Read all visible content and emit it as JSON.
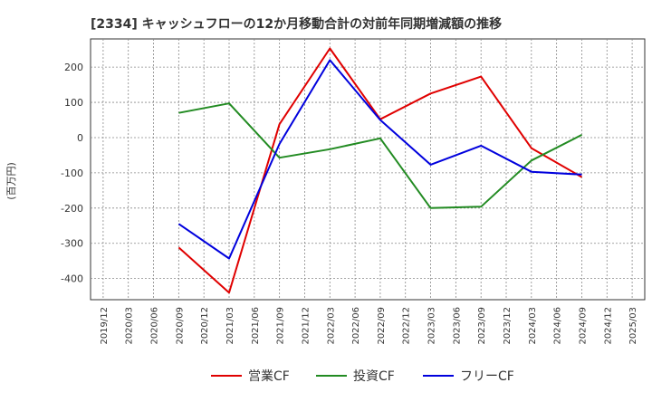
{
  "chart_data": {
    "type": "line",
    "title": "[2334]  キャッシュフローの12か月移動合計の対前年同期増減額の推移",
    "ylabel": "(百万円)",
    "xlabel": "",
    "ylim": [
      -460,
      280
    ],
    "yticks": [
      200,
      100,
      0,
      -100,
      -200,
      -300,
      -400
    ],
    "categories": [
      "2019/12",
      "2020/03",
      "2020/06",
      "2020/09",
      "2020/12",
      "2021/03",
      "2021/06",
      "2021/09",
      "2021/12",
      "2022/03",
      "2022/06",
      "2022/09",
      "2022/12",
      "2023/03",
      "2023/06",
      "2023/09",
      "2023/12",
      "2024/03",
      "2024/06",
      "2024/09",
      "2024/12",
      "2025/03"
    ],
    "grid": true,
    "legend_position": "bottom",
    "series": [
      {
        "name": "営業CF",
        "color": "#e00000",
        "values": [
          null,
          null,
          null,
          -312,
          null,
          -440,
          null,
          38,
          null,
          253,
          null,
          52,
          null,
          125,
          null,
          173,
          null,
          -30,
          null,
          -112,
          null,
          null
        ]
      },
      {
        "name": "投資CF",
        "color": "#228b22",
        "values": [
          null,
          null,
          null,
          70,
          null,
          97,
          null,
          -57,
          null,
          -33,
          null,
          -2,
          null,
          -200,
          null,
          -196,
          null,
          -65,
          null,
          8,
          null,
          null
        ]
      },
      {
        "name": "フリーCF",
        "color": "#0000dd",
        "values": [
          null,
          null,
          null,
          -245,
          null,
          -343,
          null,
          -18,
          null,
          220,
          null,
          50,
          null,
          -77,
          null,
          -23,
          null,
          -97,
          null,
          -105,
          null,
          null
        ]
      }
    ]
  }
}
